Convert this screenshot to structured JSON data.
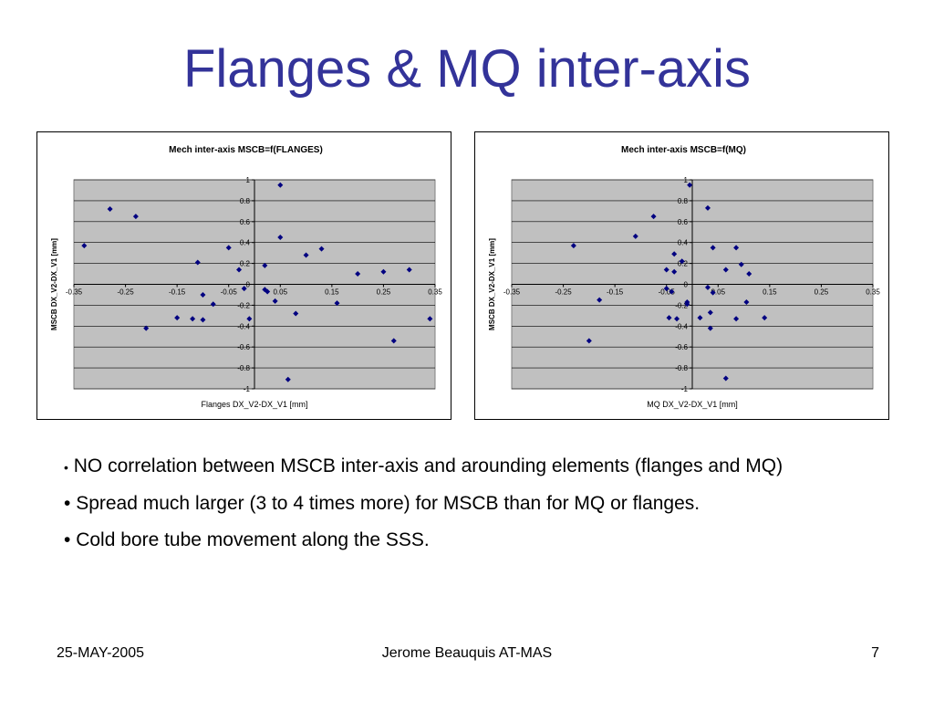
{
  "slide": {
    "title": "Flanges & MQ inter-axis",
    "bullets": [
      {
        "marker": "•",
        "text": "NO correlation between MSCB inter-axis and arounding elements (flanges and MQ)"
      },
      {
        "marker": "•",
        "text": "Spread much larger (3 to 4 times more) for MSCB than for MQ or flanges."
      },
      {
        "marker": "•",
        "text": "Cold bore tube movement along the SSS."
      }
    ],
    "footer": {
      "date": "25-MAY-2005",
      "author": "Jerome Beauquis AT-MAS",
      "page": "7"
    }
  },
  "colors": {
    "title": "#333399",
    "plot_bg": "#c0c0c0",
    "marker": "#000080"
  },
  "chart_data": [
    {
      "type": "scatter",
      "title": "Mech inter-axis MSCB=f(FLANGES)",
      "xlabel": "Flanges DX_V2-DX_V1 [mm]",
      "ylabel": "MSCB DX_V2-DX_V1 [mm]",
      "xlim": [
        -0.35,
        0.35
      ],
      "ylim": [
        -1,
        1
      ],
      "xticks": [
        -0.35,
        -0.25,
        -0.15,
        -0.05,
        0.05,
        0.15,
        0.25,
        0.35
      ],
      "xtick_labels": [
        "-0.35",
        "-0.25",
        "-0.15",
        "-0.05",
        "0.05",
        "0.15",
        "0.25",
        "0.35"
      ],
      "yticks": [
        -1,
        -0.8,
        -0.6,
        -0.4,
        -0.2,
        0,
        0.2,
        0.4,
        0.6,
        0.8,
        1
      ],
      "ytick_labels": [
        "-1",
        "-0.8",
        "-0.6",
        "-0.4",
        "-0.2",
        "0",
        "0.2",
        "0.4",
        "0.6",
        "0.8",
        "1"
      ],
      "grid": true,
      "legend": "none",
      "points": [
        {
          "x": -0.33,
          "y": 0.37
        },
        {
          "x": -0.28,
          "y": 0.72
        },
        {
          "x": -0.23,
          "y": 0.65
        },
        {
          "x": -0.21,
          "y": -0.42
        },
        {
          "x": -0.15,
          "y": -0.32
        },
        {
          "x": -0.12,
          "y": -0.33
        },
        {
          "x": -0.11,
          "y": 0.21
        },
        {
          "x": -0.1,
          "y": -0.34
        },
        {
          "x": -0.1,
          "y": -0.1
        },
        {
          "x": -0.08,
          "y": -0.19
        },
        {
          "x": -0.05,
          "y": 0.35
        },
        {
          "x": -0.03,
          "y": 0.14
        },
        {
          "x": -0.02,
          "y": -0.04
        },
        {
          "x": -0.01,
          "y": -0.33
        },
        {
          "x": 0.02,
          "y": 0.18
        },
        {
          "x": 0.02,
          "y": -0.05
        },
        {
          "x": 0.025,
          "y": -0.07
        },
        {
          "x": 0.04,
          "y": -0.16
        },
        {
          "x": 0.05,
          "y": 0.95
        },
        {
          "x": 0.05,
          "y": 0.45
        },
        {
          "x": 0.065,
          "y": -0.91
        },
        {
          "x": 0.08,
          "y": -0.28
        },
        {
          "x": 0.1,
          "y": 0.28
        },
        {
          "x": 0.13,
          "y": 0.34
        },
        {
          "x": 0.16,
          "y": -0.18
        },
        {
          "x": 0.2,
          "y": 0.1
        },
        {
          "x": 0.25,
          "y": 0.12
        },
        {
          "x": 0.27,
          "y": -0.54
        },
        {
          "x": 0.3,
          "y": 0.14
        },
        {
          "x": 0.34,
          "y": -0.33
        }
      ]
    },
    {
      "type": "scatter",
      "title": "Mech inter-axis MSCB=f(MQ)",
      "xlabel": "MQ DX_V2-DX_V1 [mm]",
      "ylabel": "MSCB DX_V2-DX_V1 [mm]",
      "xlim": [
        -0.35,
        0.35
      ],
      "ylim": [
        -1,
        1
      ],
      "xticks": [
        -0.35,
        -0.25,
        -0.15,
        -0.05,
        0.05,
        0.15,
        0.25,
        0.35
      ],
      "xtick_labels": [
        "-0.35",
        "-0.25",
        "-0.15",
        "-0.05",
        "0.05",
        "0.15",
        "0.25",
        "0.35"
      ],
      "yticks": [
        -1,
        -0.8,
        -0.6,
        -0.4,
        -0.2,
        0,
        0.2,
        0.4,
        0.6,
        0.8,
        1
      ],
      "ytick_labels": [
        "-1",
        "-0.8",
        "-0.6",
        "-0.4",
        "-0.2",
        "0",
        "0.2",
        "0.4",
        "0.6",
        "0.8",
        "1"
      ],
      "grid": true,
      "legend": "none",
      "points": [
        {
          "x": -0.23,
          "y": 0.37
        },
        {
          "x": -0.2,
          "y": -0.54
        },
        {
          "x": -0.18,
          "y": -0.15
        },
        {
          "x": -0.11,
          "y": 0.46
        },
        {
          "x": -0.075,
          "y": 0.65
        },
        {
          "x": -0.05,
          "y": 0.14
        },
        {
          "x": -0.05,
          "y": -0.04
        },
        {
          "x": -0.045,
          "y": -0.32
        },
        {
          "x": -0.04,
          "y": -0.07
        },
        {
          "x": -0.035,
          "y": 0.29
        },
        {
          "x": -0.035,
          "y": 0.12
        },
        {
          "x": -0.03,
          "y": -0.33
        },
        {
          "x": -0.02,
          "y": 0.22
        },
        {
          "x": -0.01,
          "y": -0.17
        },
        {
          "x": -0.01,
          "y": -0.19
        },
        {
          "x": -0.005,
          "y": 0.95
        },
        {
          "x": 0.015,
          "y": -0.32
        },
        {
          "x": 0.03,
          "y": 0.73
        },
        {
          "x": 0.03,
          "y": -0.03
        },
        {
          "x": 0.035,
          "y": -0.27
        },
        {
          "x": 0.035,
          "y": -0.42
        },
        {
          "x": 0.04,
          "y": 0.35
        },
        {
          "x": 0.04,
          "y": -0.08
        },
        {
          "x": 0.065,
          "y": 0.14
        },
        {
          "x": 0.065,
          "y": -0.9
        },
        {
          "x": 0.085,
          "y": 0.35
        },
        {
          "x": 0.085,
          "y": -0.33
        },
        {
          "x": 0.095,
          "y": 0.19
        },
        {
          "x": 0.11,
          "y": 0.1
        },
        {
          "x": 0.105,
          "y": -0.17
        },
        {
          "x": 0.14,
          "y": -0.32
        }
      ]
    }
  ]
}
